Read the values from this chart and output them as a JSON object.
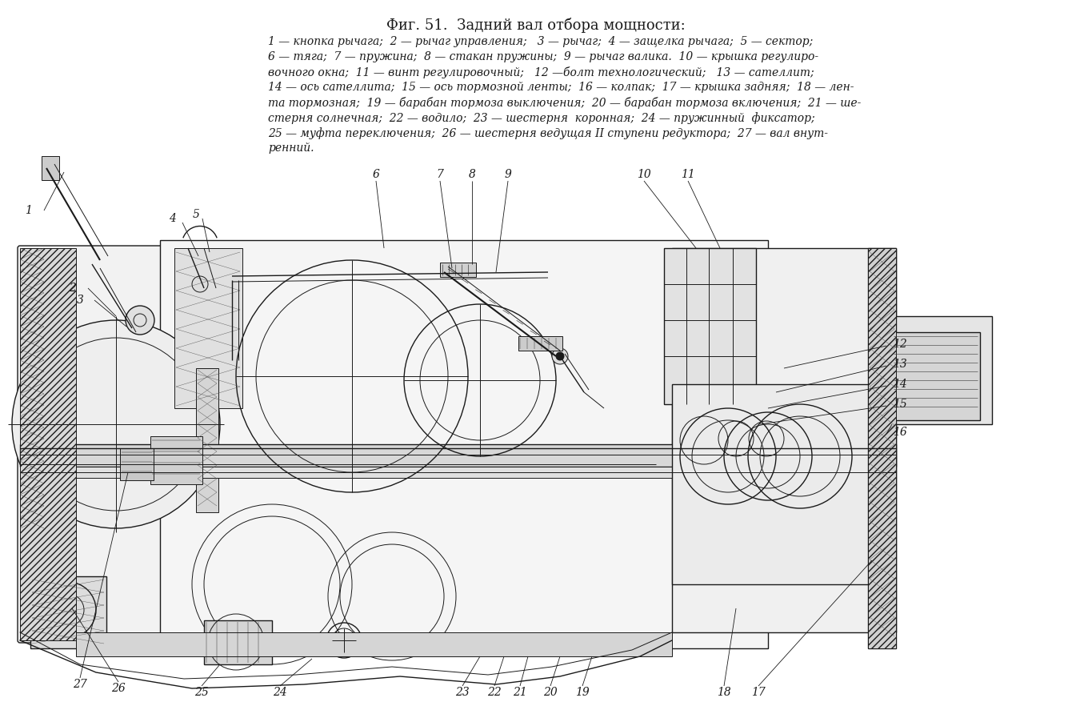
{
  "title": "Фиг. 51.  Задний вал отбора мощности:",
  "background_color": "#ffffff",
  "text_color": "#000000",
  "legend_lines": [
    "1 — кнопка рычага;  2 — рычаг управления;   3 — рычаг;  4 — защелка рычага;  5 — сектор;",
    "6 — тяга;  7 — пружина;  8 — стакан пружины;  9 — рычаг валика.  10 — крышка регулиро-",
    "вочного окна;  11 — винт регулировочный;   12 —болт технологический;   13 — сателлит;",
    "14 — ось сателлита;  15 — ось тормозной ленты;  16 — колпак;  17 — крышка задняя;  18 — лен-",
    "та тормозная;  19 — барабан тормоза выключения;  20 — барабан тормоза включения;  21 — ше-",
    "стерня солнечная;  22 — водило;  23 — шестерня  коронная;  24 — пружинный  фиксатор;",
    "25 — муфта переключения;  26 — шестерня ведущая II ступени редуктора;  27 — вал внут-",
    "ренний."
  ],
  "fig_width": 13.4,
  "fig_height": 8.92,
  "dpi": 100
}
